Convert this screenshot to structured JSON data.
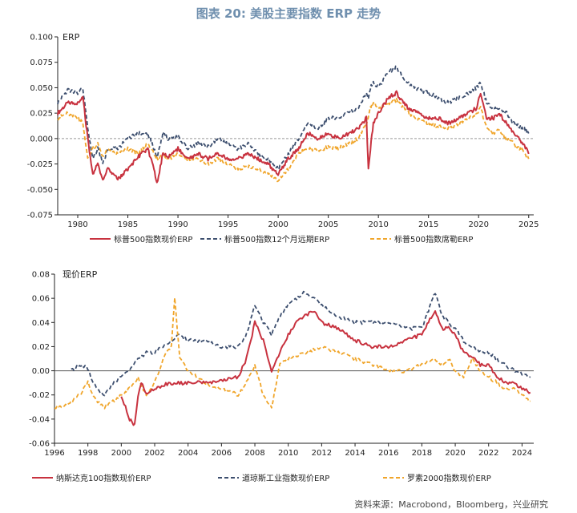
{
  "page": {
    "title": "图表 20: 美股主要指数 ERP 走势",
    "source": "资料来源：Macrobond，Bloomberg，兴业研究"
  },
  "chart_data": [
    {
      "type": "line",
      "ylabel": "ERP",
      "xlim": [
        1978.0,
        2025.5
      ],
      "ylim": [
        -0.075,
        0.1
      ],
      "xticks": [
        1980,
        1985,
        1990,
        1995,
        2000,
        2005,
        2010,
        2015,
        2020,
        2025
      ],
      "xtick_labels": [
        "1980",
        "1985",
        "1990",
        "1995",
        "2000",
        "2005",
        "2010",
        "2015",
        "2020",
        "2025"
      ],
      "yticks": [
        -0.075,
        -0.05,
        -0.025,
        0,
        0.025,
        0.05,
        0.075,
        0.1
      ],
      "ytick_labels": [
        "-0.075",
        "-0.050",
        "-0.025",
        "0.000",
        "0.025",
        "0.050",
        "0.075",
        "0.100"
      ],
      "zero_line": true,
      "legend_position": "bottom",
      "series": [
        {
          "name": "标普500指数现价ERP",
          "color": "#c8323f",
          "style": "solid",
          "x": [
            1978.0,
            1979.0,
            1980.0,
            1980.5,
            1981.0,
            1981.5,
            1982.0,
            1982.5,
            1983.0,
            1984.0,
            1985.0,
            1986.0,
            1987.0,
            1987.6,
            1987.9,
            1988.5,
            1989.0,
            1990.0,
            1991.0,
            1992.0,
            1993.0,
            1994.0,
            1995.0,
            1996.0,
            1997.0,
            1998.0,
            1999.0,
            2000.0,
            2001.0,
            2002.0,
            2003.0,
            2004.0,
            2005.0,
            2006.0,
            2007.0,
            2008.0,
            2008.8,
            2009.0,
            2009.2,
            2009.5,
            2010.0,
            2011.0,
            2011.8,
            2012.5,
            2013.0,
            2014.0,
            2015.0,
            2016.0,
            2017.0,
            2018.0,
            2019.0,
            2019.8,
            2020.2,
            2020.8,
            2021.5,
            2022.0,
            2022.8,
            2023.5,
            2024.0,
            2024.5,
            2025.0
          ],
          "y": [
            0.025,
            0.035,
            0.035,
            0.042,
            0.0,
            -0.035,
            -0.025,
            -0.04,
            -0.03,
            -0.04,
            -0.03,
            -0.018,
            -0.01,
            -0.03,
            -0.045,
            -0.015,
            -0.018,
            -0.01,
            -0.02,
            -0.015,
            -0.02,
            -0.015,
            -0.02,
            -0.02,
            -0.015,
            -0.02,
            -0.025,
            -0.035,
            -0.02,
            -0.01,
            0.005,
            0.0,
            0.005,
            0.0,
            0.005,
            0.01,
            0.02,
            -0.03,
            -0.01,
            0.015,
            0.025,
            0.04,
            0.045,
            0.035,
            0.03,
            0.025,
            0.02,
            0.02,
            0.015,
            0.02,
            0.025,
            0.03,
            0.045,
            0.02,
            0.02,
            0.025,
            0.015,
            0.005,
            0.0,
            -0.005,
            -0.015
          ]
        },
        {
          "name": "标普500指数12个月远期ERP",
          "color": "#3c4e6e",
          "style": "dashed",
          "x": [
            1978.0,
            1979.0,
            1980.0,
            1980.5,
            1981.0,
            1981.5,
            1982.0,
            1982.5,
            1983.0,
            1984.0,
            1985.0,
            1986.0,
            1987.0,
            1987.6,
            1987.9,
            1988.5,
            1989.0,
            1990.0,
            1991.0,
            1992.0,
            1993.0,
            1994.0,
            1995.0,
            1996.0,
            1997.0,
            1998.0,
            1999.0,
            2000.0,
            2001.0,
            2002.0,
            2003.0,
            2004.0,
            2005.0,
            2006.0,
            2007.0,
            2008.0,
            2008.8,
            2009.0,
            2009.2,
            2009.5,
            2010.0,
            2011.0,
            2011.8,
            2012.5,
            2013.0,
            2014.0,
            2015.0,
            2016.0,
            2017.0,
            2018.0,
            2019.0,
            2019.8,
            2020.2,
            2020.8,
            2021.5,
            2022.0,
            2022.8,
            2023.5,
            2024.0,
            2024.5,
            2025.0
          ],
          "y": [
            0.035,
            0.048,
            0.045,
            0.05,
            0.01,
            -0.02,
            -0.01,
            -0.025,
            -0.01,
            -0.01,
            0.0,
            0.005,
            0.005,
            -0.01,
            -0.02,
            0.005,
            0.0,
            0.002,
            -0.01,
            -0.005,
            -0.008,
            0.0,
            -0.005,
            -0.01,
            -0.005,
            -0.015,
            -0.02,
            -0.03,
            -0.015,
            0.0,
            0.015,
            0.01,
            0.02,
            0.02,
            0.025,
            0.03,
            0.045,
            0.04,
            0.05,
            0.055,
            0.05,
            0.065,
            0.07,
            0.06,
            0.055,
            0.048,
            0.045,
            0.04,
            0.035,
            0.04,
            0.045,
            0.05,
            0.055,
            0.035,
            0.03,
            0.028,
            0.025,
            0.015,
            0.012,
            0.01,
            0.005
          ]
        },
        {
          "name": "标普500指数席勒ERP",
          "color": "#f0a52a",
          "style": "dashed",
          "x": [
            1978.0,
            1979.0,
            1980.0,
            1980.5,
            1981.0,
            1981.5,
            1982.0,
            1982.5,
            1983.0,
            1984.0,
            1985.0,
            1986.0,
            1987.0,
            1987.6,
            1987.9,
            1988.5,
            1989.0,
            1990.0,
            1991.0,
            1992.0,
            1993.0,
            1994.0,
            1995.0,
            1996.0,
            1997.0,
            1998.0,
            1999.0,
            2000.0,
            2001.0,
            2002.0,
            2003.0,
            2004.0,
            2005.0,
            2006.0,
            2007.0,
            2008.0,
            2008.8,
            2009.0,
            2009.2,
            2009.5,
            2010.0,
            2011.0,
            2011.8,
            2012.5,
            2013.0,
            2014.0,
            2015.0,
            2016.0,
            2017.0,
            2018.0,
            2019.0,
            2019.8,
            2020.2,
            2020.8,
            2021.5,
            2022.0,
            2022.8,
            2023.5,
            2024.0,
            2024.5,
            2025.0
          ],
          "y": [
            0.02,
            0.025,
            0.02,
            0.015,
            -0.02,
            -0.01,
            -0.005,
            -0.018,
            -0.01,
            -0.015,
            -0.01,
            -0.015,
            -0.005,
            -0.015,
            -0.02,
            -0.015,
            -0.02,
            -0.015,
            -0.02,
            -0.02,
            -0.025,
            -0.02,
            -0.025,
            -0.03,
            -0.028,
            -0.03,
            -0.035,
            -0.042,
            -0.03,
            -0.015,
            -0.01,
            -0.012,
            -0.008,
            -0.01,
            -0.005,
            0.0,
            0.015,
            0.02,
            0.03,
            0.035,
            0.03,
            0.035,
            0.038,
            0.03,
            0.025,
            0.018,
            0.015,
            0.012,
            0.01,
            0.015,
            0.02,
            0.025,
            0.03,
            0.01,
            0.005,
            0.008,
            0.0,
            -0.005,
            -0.01,
            -0.012,
            -0.02
          ]
        }
      ]
    },
    {
      "type": "line",
      "ylabel": "现价ERP",
      "xlim": [
        1996.0,
        2024.7
      ],
      "ylim": [
        -0.06,
        0.08
      ],
      "xticks": [
        1996,
        1998,
        2000,
        2002,
        2004,
        2006,
        2008,
        2010,
        2012,
        2014,
        2016,
        2018,
        2020,
        2022,
        2024
      ],
      "xtick_labels": [
        "1996",
        "1998",
        "2000",
        "2002",
        "2004",
        "2006",
        "2008",
        "2010",
        "2012",
        "2014",
        "2016",
        "2018",
        "2020",
        "2022",
        "2024"
      ],
      "yticks": [
        -0.06,
        -0.04,
        -0.02,
        0,
        0.02,
        0.04,
        0.06,
        0.08
      ],
      "ytick_labels": [
        "-0.06",
        "-0.04",
        "-0.02",
        "0.00",
        "0.02",
        "0.04",
        "0.06",
        "0.08"
      ],
      "zero_line": true,
      "legend_position": "bottom",
      "series": [
        {
          "name": "纳斯达克100指数现价ERP",
          "color": "#c8323f",
          "style": "solid",
          "x": [
            2000.0,
            2000.5,
            2000.8,
            2001.0,
            2001.2,
            2001.5,
            2002.0,
            2002.5,
            2003.0,
            2003.5,
            2004.0,
            2005.0,
            2006.0,
            2007.0,
            2007.5,
            2008.0,
            2008.5,
            2009.0,
            2009.5,
            2010.0,
            2010.5,
            2011.0,
            2011.5,
            2012.0,
            2013.0,
            2014.0,
            2015.0,
            2016.0,
            2017.0,
            2018.0,
            2018.8,
            2019.2,
            2019.6,
            2020.0,
            2020.5,
            2021.0,
            2021.5,
            2022.0,
            2022.5,
            2023.0,
            2023.5,
            2024.0,
            2024.5
          ],
          "y": [
            -0.02,
            -0.04,
            -0.045,
            -0.02,
            -0.01,
            -0.02,
            -0.015,
            -0.012,
            -0.01,
            -0.01,
            -0.01,
            -0.01,
            -0.008,
            -0.005,
            0.01,
            0.04,
            0.025,
            0.0,
            0.015,
            0.03,
            0.04,
            0.045,
            0.05,
            0.04,
            0.035,
            0.025,
            0.02,
            0.02,
            0.025,
            0.03,
            0.05,
            0.035,
            0.035,
            0.03,
            0.015,
            0.012,
            0.005,
            0.005,
            -0.005,
            -0.01,
            -0.01,
            -0.015,
            -0.018
          ]
        },
        {
          "name": "道琼斯工业指数现价ERP",
          "color": "#3c4e6e",
          "style": "dashed",
          "x": [
            1997.0,
            1997.5,
            1998.0,
            1998.5,
            1999.0,
            1999.5,
            2000.0,
            2000.5,
            2001.0,
            2001.5,
            2002.0,
            2002.5,
            2003.0,
            2003.5,
            2004.0,
            2005.0,
            2006.0,
            2007.0,
            2007.5,
            2008.0,
            2008.5,
            2009.0,
            2009.5,
            2010.0,
            2010.5,
            2011.0,
            2011.5,
            2012.0,
            2013.0,
            2014.0,
            2015.0,
            2016.0,
            2017.0,
            2018.0,
            2018.8,
            2019.2,
            2019.6,
            2020.0,
            2020.5,
            2021.0,
            2021.5,
            2022.0,
            2022.5,
            2023.0,
            2023.5,
            2024.0,
            2024.5
          ],
          "y": [
            0.0,
            0.005,
            0.002,
            -0.015,
            -0.02,
            -0.01,
            -0.005,
            0.0,
            0.01,
            0.015,
            0.015,
            0.02,
            0.025,
            0.03,
            0.025,
            0.025,
            0.02,
            0.02,
            0.03,
            0.055,
            0.04,
            0.03,
            0.045,
            0.055,
            0.06,
            0.065,
            0.06,
            0.055,
            0.045,
            0.04,
            0.04,
            0.04,
            0.035,
            0.035,
            0.065,
            0.045,
            0.04,
            0.035,
            0.025,
            0.02,
            0.015,
            0.015,
            0.01,
            0.005,
            0.0,
            -0.002,
            -0.005
          ]
        },
        {
          "name": "罗素2000指数现价ERP",
          "color": "#f0a52a",
          "style": "dashed",
          "x": [
            1996.0,
            1996.5,
            1997.0,
            1997.5,
            1998.0,
            1998.5,
            1999.0,
            1999.5,
            2000.0,
            2000.5,
            2001.0,
            2001.5,
            2002.0,
            2002.5,
            2003.0,
            2003.2,
            2003.5,
            2004.0,
            2005.0,
            2006.0,
            2007.0,
            2007.5,
            2008.0,
            2008.5,
            2009.0,
            2009.5,
            2010.0,
            2011.0,
            2012.0,
            2013.0,
            2014.0,
            2015.0,
            2016.0,
            2017.0,
            2018.0,
            2018.8,
            2019.2,
            2019.6,
            2020.0,
            2020.5,
            2021.0,
            2021.5,
            2022.0,
            2022.5,
            2023.0,
            2023.5,
            2024.0,
            2024.5
          ],
          "y": [
            -0.03,
            -0.03,
            -0.025,
            -0.02,
            -0.01,
            -0.025,
            -0.03,
            -0.025,
            -0.02,
            -0.015,
            -0.005,
            -0.02,
            -0.01,
            0.01,
            0.02,
            0.06,
            0.01,
            0.0,
            -0.01,
            -0.015,
            -0.02,
            -0.01,
            0.005,
            -0.02,
            -0.03,
            0.005,
            0.01,
            0.015,
            0.02,
            0.015,
            0.01,
            0.005,
            0.0,
            0.0,
            0.005,
            0.01,
            0.005,
            0.01,
            0.0,
            -0.005,
            0.01,
            0.0,
            -0.005,
            -0.01,
            -0.015,
            -0.015,
            -0.02,
            -0.025
          ]
        }
      ]
    }
  ]
}
